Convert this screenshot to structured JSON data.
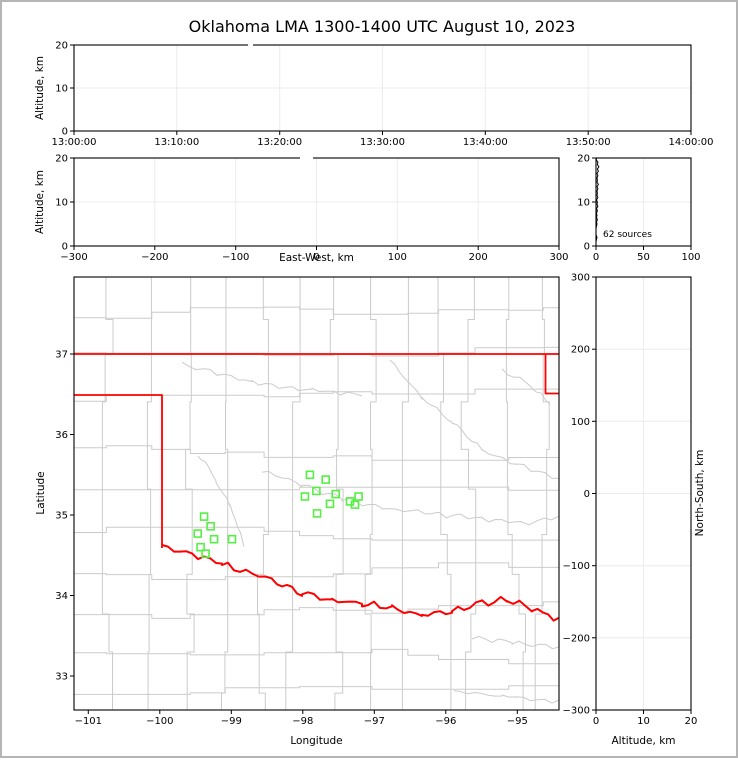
{
  "title": "Oklahoma LMA 1300-1400 UTC August 10, 2023",
  "colors": {
    "state_border": "#ff0000",
    "county_lines": "#cbcbcb",
    "river_lines": "#cbcbcb",
    "station_marker": "#55f043",
    "histogram_trace": "#000000",
    "gridline": "#ececec",
    "axis": "#000000",
    "background": "#ffffff",
    "frame": "#b5b5b5"
  },
  "panels": {
    "time_altitude": {
      "ylabel": "Altitude, km",
      "yticks": [
        "20",
        "10",
        "0"
      ],
      "xticks": [
        "13:00:00",
        "13:10:00",
        "13:20:00",
        "13:30:00",
        "13:40:00",
        "13:50:00",
        "14:00:00"
      ]
    },
    "ew_altitude": {
      "ylabel": "Altitude, km",
      "xlabel": "East-West, km",
      "yticks": [
        "20",
        "10",
        "0"
      ],
      "xticks": [
        "−300",
        "−200",
        "−100",
        "0",
        "100",
        "200",
        "300"
      ]
    },
    "alt_histogram": {
      "annotation": "62 sources",
      "yticks": [
        "20",
        "10",
        "0"
      ],
      "xticks": [
        "0",
        "50",
        "100"
      ]
    },
    "map": {
      "xlabel": "Longitude",
      "ylabel": "Latitude",
      "yticks": [
        "37",
        "36",
        "35",
        "34",
        "33"
      ],
      "xticks": [
        "−101",
        "−100",
        "−99",
        "−98",
        "−97",
        "−96",
        "−95"
      ]
    },
    "ns_altitude": {
      "xlabel": "Altitude, km",
      "ylabel": "North-South, km",
      "yticks": [
        "300",
        "200",
        "100",
        "0",
        "−100",
        "−200",
        "−300"
      ],
      "xticks": [
        "0",
        "10",
        "20"
      ]
    }
  },
  "chart_data": [
    {
      "type": "scatter",
      "panel": "altitude_vs_time",
      "title": "Oklahoma LMA 1300-1400 UTC August 10, 2023",
      "ylabel": "Altitude, km",
      "ylim": [
        0,
        20
      ],
      "x_tick_labels": [
        "13:00:00",
        "13:10:00",
        "13:20:00",
        "13:30:00",
        "13:40:00",
        "13:50:00",
        "14:00:00"
      ],
      "points": []
    },
    {
      "type": "scatter",
      "panel": "altitude_vs_east_west",
      "xlabel": "East-West, km",
      "ylabel": "Altitude, km",
      "xlim": [
        -300,
        300
      ],
      "ylim": [
        0,
        20
      ],
      "points": []
    },
    {
      "type": "line",
      "panel": "source_count_vs_altitude",
      "annotation": "62 sources",
      "total_sources": 62,
      "xlim": [
        0,
        100
      ],
      "ylim": [
        0,
        20
      ],
      "profile_alt_km_vs_count": [
        [
          0,
          0
        ],
        [
          1,
          0
        ],
        [
          2,
          1
        ],
        [
          2.5,
          0
        ],
        [
          4,
          0
        ],
        [
          5,
          1
        ],
        [
          5.5,
          0.5
        ],
        [
          6,
          1.5
        ],
        [
          6.5,
          0.5
        ],
        [
          7,
          1
        ],
        [
          7.5,
          0.5
        ],
        [
          8,
          1.5
        ],
        [
          8.5,
          0.5
        ],
        [
          9,
          2
        ],
        [
          9.5,
          1
        ],
        [
          10,
          1.5
        ],
        [
          10.5,
          0.5
        ],
        [
          11,
          2
        ],
        [
          11.5,
          1
        ],
        [
          12,
          1.5
        ],
        [
          12.5,
          1
        ],
        [
          13,
          2
        ],
        [
          13.5,
          1
        ],
        [
          14,
          2.5
        ],
        [
          14.5,
          1
        ],
        [
          15,
          1.5
        ],
        [
          15.5,
          1
        ],
        [
          16,
          2
        ],
        [
          16.5,
          1
        ],
        [
          17,
          2.5
        ],
        [
          17.5,
          1.5
        ],
        [
          18,
          3
        ],
        [
          18.5,
          1.5
        ],
        [
          19,
          2
        ],
        [
          19.5,
          0.5
        ],
        [
          20,
          0
        ]
      ]
    },
    {
      "type": "scatter",
      "panel": "map_latitude_vs_longitude",
      "xlabel": "Longitude",
      "ylabel": "Latitude",
      "xlim": [
        -101.2,
        -94.4
      ],
      "ylim": [
        32.6,
        38.0
      ],
      "state_outline": "Oklahoma",
      "station_markers": [
        {
          "lat": 34.98,
          "lon": -99.38
        },
        {
          "lat": 34.86,
          "lon": -99.29
        },
        {
          "lat": 34.77,
          "lon": -99.47
        },
        {
          "lat": 34.7,
          "lon": -99.24
        },
        {
          "lat": 34.7,
          "lon": -98.99
        },
        {
          "lat": 34.6,
          "lon": -99.43
        },
        {
          "lat": 34.52,
          "lon": -99.36
        },
        {
          "lat": 35.5,
          "lon": -97.9
        },
        {
          "lat": 35.44,
          "lon": -97.68
        },
        {
          "lat": 35.3,
          "lon": -97.81
        },
        {
          "lat": 35.23,
          "lon": -97.97
        },
        {
          "lat": 35.26,
          "lon": -97.54
        },
        {
          "lat": 35.14,
          "lon": -97.62
        },
        {
          "lat": 35.17,
          "lon": -97.34
        },
        {
          "lat": 35.23,
          "lon": -97.22
        },
        {
          "lat": 35.13,
          "lon": -97.27
        },
        {
          "lat": 35.02,
          "lon": -97.8
        }
      ]
    },
    {
      "type": "scatter",
      "panel": "north_south_vs_altitude",
      "xlabel": "Altitude, km",
      "ylabel": "North-South, km",
      "xlim": [
        0,
        20
      ],
      "ylim": [
        -300,
        300
      ],
      "points": []
    }
  ]
}
